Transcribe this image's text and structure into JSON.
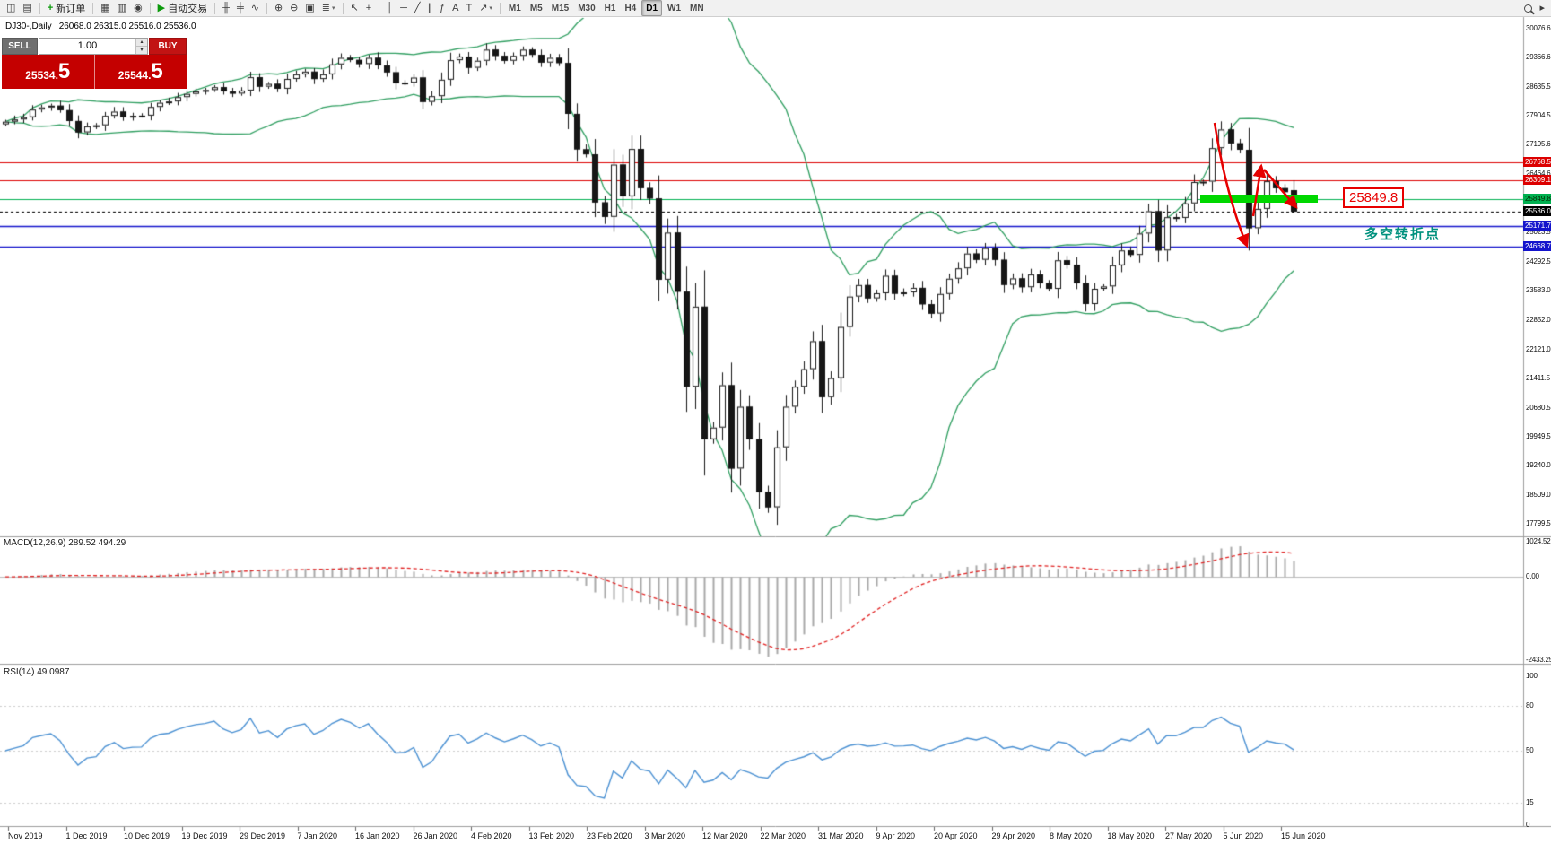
{
  "chart_title": {
    "symbol": "DJ30-,Daily",
    "ohlc": "26068.0 26315.0 25516.0 25536.0"
  },
  "toolbar": {
    "groups": [
      {
        "items": [
          {
            "name": "new-chart",
            "glyph": "◫"
          },
          {
            "name": "profiles",
            "glyph": "▤"
          }
        ]
      },
      {
        "items": [
          {
            "name": "new-order",
            "glyph": "+",
            "color": "#0c9a0c",
            "bold": true,
            "label": "新订单"
          }
        ]
      },
      {
        "items": [
          {
            "name": "market-watch",
            "glyph": "▦"
          },
          {
            "name": "data-window",
            "glyph": "▥"
          },
          {
            "name": "navigator",
            "glyph": "◉"
          }
        ]
      },
      {
        "items": [
          {
            "name": "auto-trading",
            "glyph": "▶",
            "color": "#0c9a0c",
            "label": "自动交易"
          }
        ]
      },
      {
        "items": [
          {
            "name": "bars-chart",
            "glyph": "╫"
          },
          {
            "name": "candlestick-chart",
            "glyph": "╪"
          },
          {
            "name": "line-chart",
            "glyph": "∿"
          }
        ]
      },
      {
        "items": [
          {
            "name": "zoom-in",
            "glyph": "⊕"
          },
          {
            "name": "zoom-out",
            "glyph": "⊖"
          },
          {
            "name": "tile-windows",
            "glyph": "▣"
          },
          {
            "name": "indicators",
            "glyph": "≣",
            "dropdown": true
          }
        ]
      },
      {
        "items": [
          {
            "name": "cursor",
            "glyph": "↖"
          },
          {
            "name": "crosshair",
            "glyph": "+"
          }
        ]
      },
      {
        "items": [
          {
            "name": "vertical-line",
            "glyph": "│"
          },
          {
            "name": "horizontal-line",
            "glyph": "─"
          },
          {
            "name": "trendline",
            "glyph": "╱"
          },
          {
            "name": "equidistant-channel",
            "glyph": "∥"
          },
          {
            "name": "fibonacci-retracement",
            "glyph": "ƒ"
          },
          {
            "name": "text",
            "glyph": "A"
          },
          {
            "name": "text-label",
            "glyph": "T"
          },
          {
            "name": "arrow-objects",
            "glyph": "↗",
            "dropdown": true
          }
        ]
      }
    ],
    "timeframes": [
      "M1",
      "M5",
      "M15",
      "M30",
      "H1",
      "H4",
      "D1",
      "W1",
      "MN"
    ],
    "active_timeframe": "D1",
    "right_items": [
      {
        "name": "search",
        "css": "mag"
      },
      {
        "name": "chart-shift",
        "glyph": "▸"
      }
    ]
  },
  "trade_panel": {
    "sell_label": "SELL",
    "buy_label": "BUY",
    "volume": "1.00",
    "spinner_up": "▴",
    "spinner_down": "▾",
    "sell_price_main": "25534.",
    "sell_price_pips": "5",
    "buy_price_main": "25544.",
    "buy_price_pips": "5"
  },
  "main_chart": {
    "y_axis_labels": [
      "30076.6",
      "29366.6",
      "28635.5",
      "27904.5",
      "27195.6",
      "26464.6",
      "25755.5",
      "25023.5",
      "24292.5",
      "23583.0",
      "22852.0",
      "22121.0",
      "21411.5",
      "20680.5",
      "19949.5",
      "19240.0",
      "18509.0",
      "17799.5"
    ],
    "levels": [
      {
        "value": "26768.5",
        "price": 26768.5,
        "color": "#dc0000",
        "type": "resistance-line"
      },
      {
        "value": "26309.1",
        "price": 26309.1,
        "color": "#dc0000",
        "type": "resistance-line"
      },
      {
        "value": "25849.8",
        "price": 25849.8,
        "color": "#00b050",
        "text_color": "#002b00",
        "type": "support-line"
      },
      {
        "value": "25536.0",
        "price": 25536.0,
        "color": "#000000",
        "dashed": true,
        "type": "current-price"
      },
      {
        "value": "25171.7",
        "price": 25171.7,
        "color": "#1414cc",
        "width": 1.5,
        "type": "support-line"
      },
      {
        "value": "24668.7",
        "price": 24668.7,
        "color": "#1414cc",
        "width": 1.5,
        "type": "support-line"
      }
    ],
    "annotations": {
      "price_tag": "25849.8",
      "turning_point_text": "多空转折点"
    }
  },
  "macd": {
    "label": "MACD(12,26,9) 289.52 494.29",
    "axis_labels": [
      "1024.52",
      "0.00",
      "-2433.25"
    ]
  },
  "rsi": {
    "label": "RSI(14) 49.0987",
    "axis_labels": [
      "100",
      "80",
      "50",
      "15",
      "0"
    ],
    "levels": [
      80,
      50,
      15
    ]
  },
  "x_axis": {
    "dates": [
      "Nov 2019",
      "1 Dec 2019",
      "10 Dec 2019",
      "19 Dec 2019",
      "29 Dec 2019",
      "7 Jan 2020",
      "16 Jan 2020",
      "26 Jan 2020",
      "4 Feb 2020",
      "13 Feb 2020",
      "23 Feb 2020",
      "3 Mar 2020",
      "12 Mar 2020",
      "22 Mar 2020",
      "31 Mar 2020",
      "9 Apr 2020",
      "20 Apr 2020",
      "29 Apr 2020",
      "8 May 2020",
      "18 May 2020",
      "27 May 2020",
      "5 Jun 2020",
      "15 Jun 2020"
    ]
  },
  "chart_data": {
    "type": "candlestick",
    "symbol": "DJ30",
    "timeframe": "Daily",
    "visible_range": [
      "Nov 2019",
      "Jun 2020"
    ],
    "price_axis_range": [
      17799.5,
      30076.6
    ],
    "macd_axis_range": [
      -2433.25,
      1024.52
    ],
    "indicators": {
      "bollinger_bands": {
        "period": 20,
        "deviation": 2,
        "color": "#2f9e60"
      },
      "macd": {
        "fast": 12,
        "slow": 26,
        "signal": 9,
        "current_main": 289.52,
        "current_signal": 494.29
      },
      "rsi": {
        "period": 14,
        "current": 49.0987
      }
    },
    "closes": [
      27766,
      27821,
      27876,
      28066,
      28121,
      28164,
      28051,
      27783,
      27502,
      27649,
      27677,
      27911,
      28015,
      27882,
      27912,
      27917,
      28132,
      28235,
      28267,
      28376,
      28455,
      28515,
      28551,
      28621,
      28515,
      28462,
      28538,
      28868,
      28634,
      28703,
      28583,
      28826,
      28939,
      29007,
      28823,
      28939,
      29186,
      29348,
      29297,
      29196,
      29348,
      29160,
      28989,
      28722,
      28734,
      28859,
      28256,
      28399,
      28807,
      29290,
      29379,
      29102,
      29276,
      29551,
      29398,
      29276,
      29398,
      29551,
      29423,
      29232,
      29348,
      29219,
      27960,
      27081,
      26957,
      25766,
      25409,
      26703,
      25917,
      27090,
      26121,
      25864,
      23851,
      25018,
      23553,
      21200,
      23185,
      19898,
      20188,
      21237,
      19173,
      20704,
      19898,
      18591,
      18214,
      19700,
      20705,
      21200,
      21636,
      22327,
      20943,
      21413,
      22680,
      23434,
      23719,
      23390,
      23515,
      23949,
      23504,
      23537,
      23650,
      23242,
      23012,
      23498,
      23876,
      24133,
      24500,
      24345,
      24634,
      24345,
      23724,
      23883,
      23665,
      23980,
      23765,
      23625,
      24332,
      24222,
      23765,
      23248,
      23626,
      23685,
      24207,
      24576,
      24466,
      24995,
      25548,
      24575,
      25400,
      25383,
      25743,
      26270,
      26281,
      27111,
      27572,
      27232,
      27070,
      25128,
      25606,
      26290,
      26119,
      26022,
      25536
    ],
    "last_candle_ohlc": [
      26068.0,
      26315.0,
      25516.0,
      25536.0
    ],
    "horizontal_levels": [
      26768.5,
      26309.1,
      25849.8,
      25171.7,
      24668.7
    ]
  }
}
